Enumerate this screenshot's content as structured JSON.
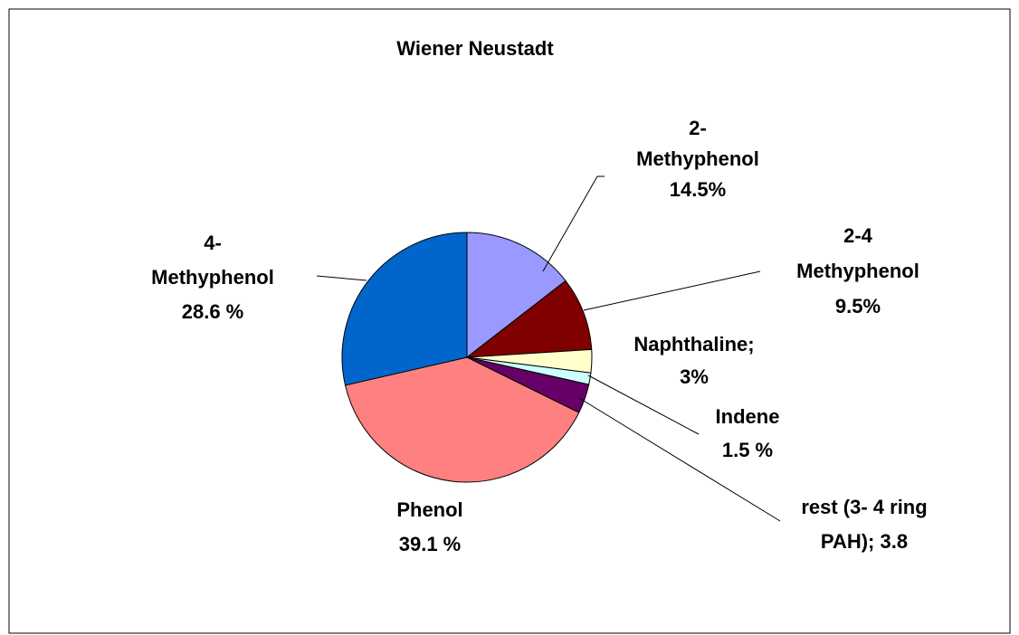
{
  "chart_data": {
    "type": "pie",
    "title": "Wiener Neustadt",
    "values": [
      14.5,
      9.5,
      3,
      1.5,
      3.8,
      39.1,
      28.6
    ],
    "value_labels": [
      [
        "2-",
        "Methyphenol",
        "14.5%"
      ],
      [
        "2-4",
        "Methyphenol",
        "9.5%"
      ],
      [
        "Naphthaline;",
        "3%"
      ],
      [
        "Indene",
        "1.5 %"
      ],
      [
        "rest (3- 4 ring",
        "PAH); 3.8"
      ],
      [
        "Phenol",
        "39.1 %"
      ],
      [
        "4-",
        "Methyphenol",
        "28.6 %"
      ]
    ],
    "colors": [
      "#9999ff",
      "#800000",
      "#ffffcc",
      "#ccffff",
      "#660066",
      "#ff8080",
      "#0066cc"
    ]
  }
}
